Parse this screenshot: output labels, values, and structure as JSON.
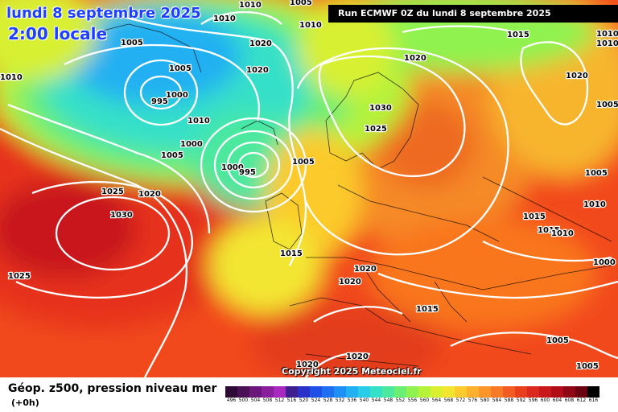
{
  "header": {
    "date": "lundi 8 septembre 2025",
    "time": "2:00 locale",
    "run_info": "Run ECMWF 0Z du lundi 8 septembre 2025"
  },
  "copyright": "Copyright 2025 Meteociel.fr",
  "footer": {
    "title": "Géop. z500, pression niveau mer",
    "subtitle": "(+0h)"
  },
  "isobar_labels": [
    "1005",
    "1010",
    "1010",
    "1010",
    "1005",
    "1020",
    "1010",
    "1015",
    "1010",
    "1020",
    "1005",
    "1010",
    "1020",
    "995",
    "1000",
    "1020",
    "1005",
    "1010",
    "1030",
    "1000",
    "1025",
    "1005",
    "1005",
    "1000",
    "995",
    "1005",
    "1025",
    "1020",
    "1030",
    "1015",
    "1010",
    "1015",
    "1010",
    "1000",
    "1025",
    "1020",
    "1020",
    "1015",
    "1015",
    "1005",
    "1005",
    "1020",
    "1020"
  ],
  "scale": {
    "labels": [
      "496",
      "500",
      "504",
      "508",
      "512",
      "516",
      "520",
      "524",
      "528",
      "532",
      "536",
      "540",
      "544",
      "548",
      "552",
      "556",
      "560",
      "564",
      "568",
      "572",
      "576",
      "580",
      "584",
      "588",
      "592",
      "596",
      "600",
      "604",
      "608",
      "612",
      "616"
    ],
    "colors": [
      "#2d0a33",
      "#4a0f55",
      "#6a167a",
      "#8a1f9e",
      "#a829c0",
      "#3d1f8f",
      "#2b31c8",
      "#1e4fe6",
      "#1e6ff2",
      "#1e90f5",
      "#22b0f2",
      "#29cde8",
      "#35e0c8",
      "#4be89e",
      "#6aee74",
      "#8ff24f",
      "#b4f33a",
      "#d8f030",
      "#f3e630",
      "#fcca2c",
      "#fdb12c",
      "#fc962a",
      "#f97a26",
      "#f25b22",
      "#e8401f",
      "#db2a1d",
      "#c8181b",
      "#b00d18",
      "#8f0614",
      "#6a0310",
      "#000000"
    ]
  }
}
